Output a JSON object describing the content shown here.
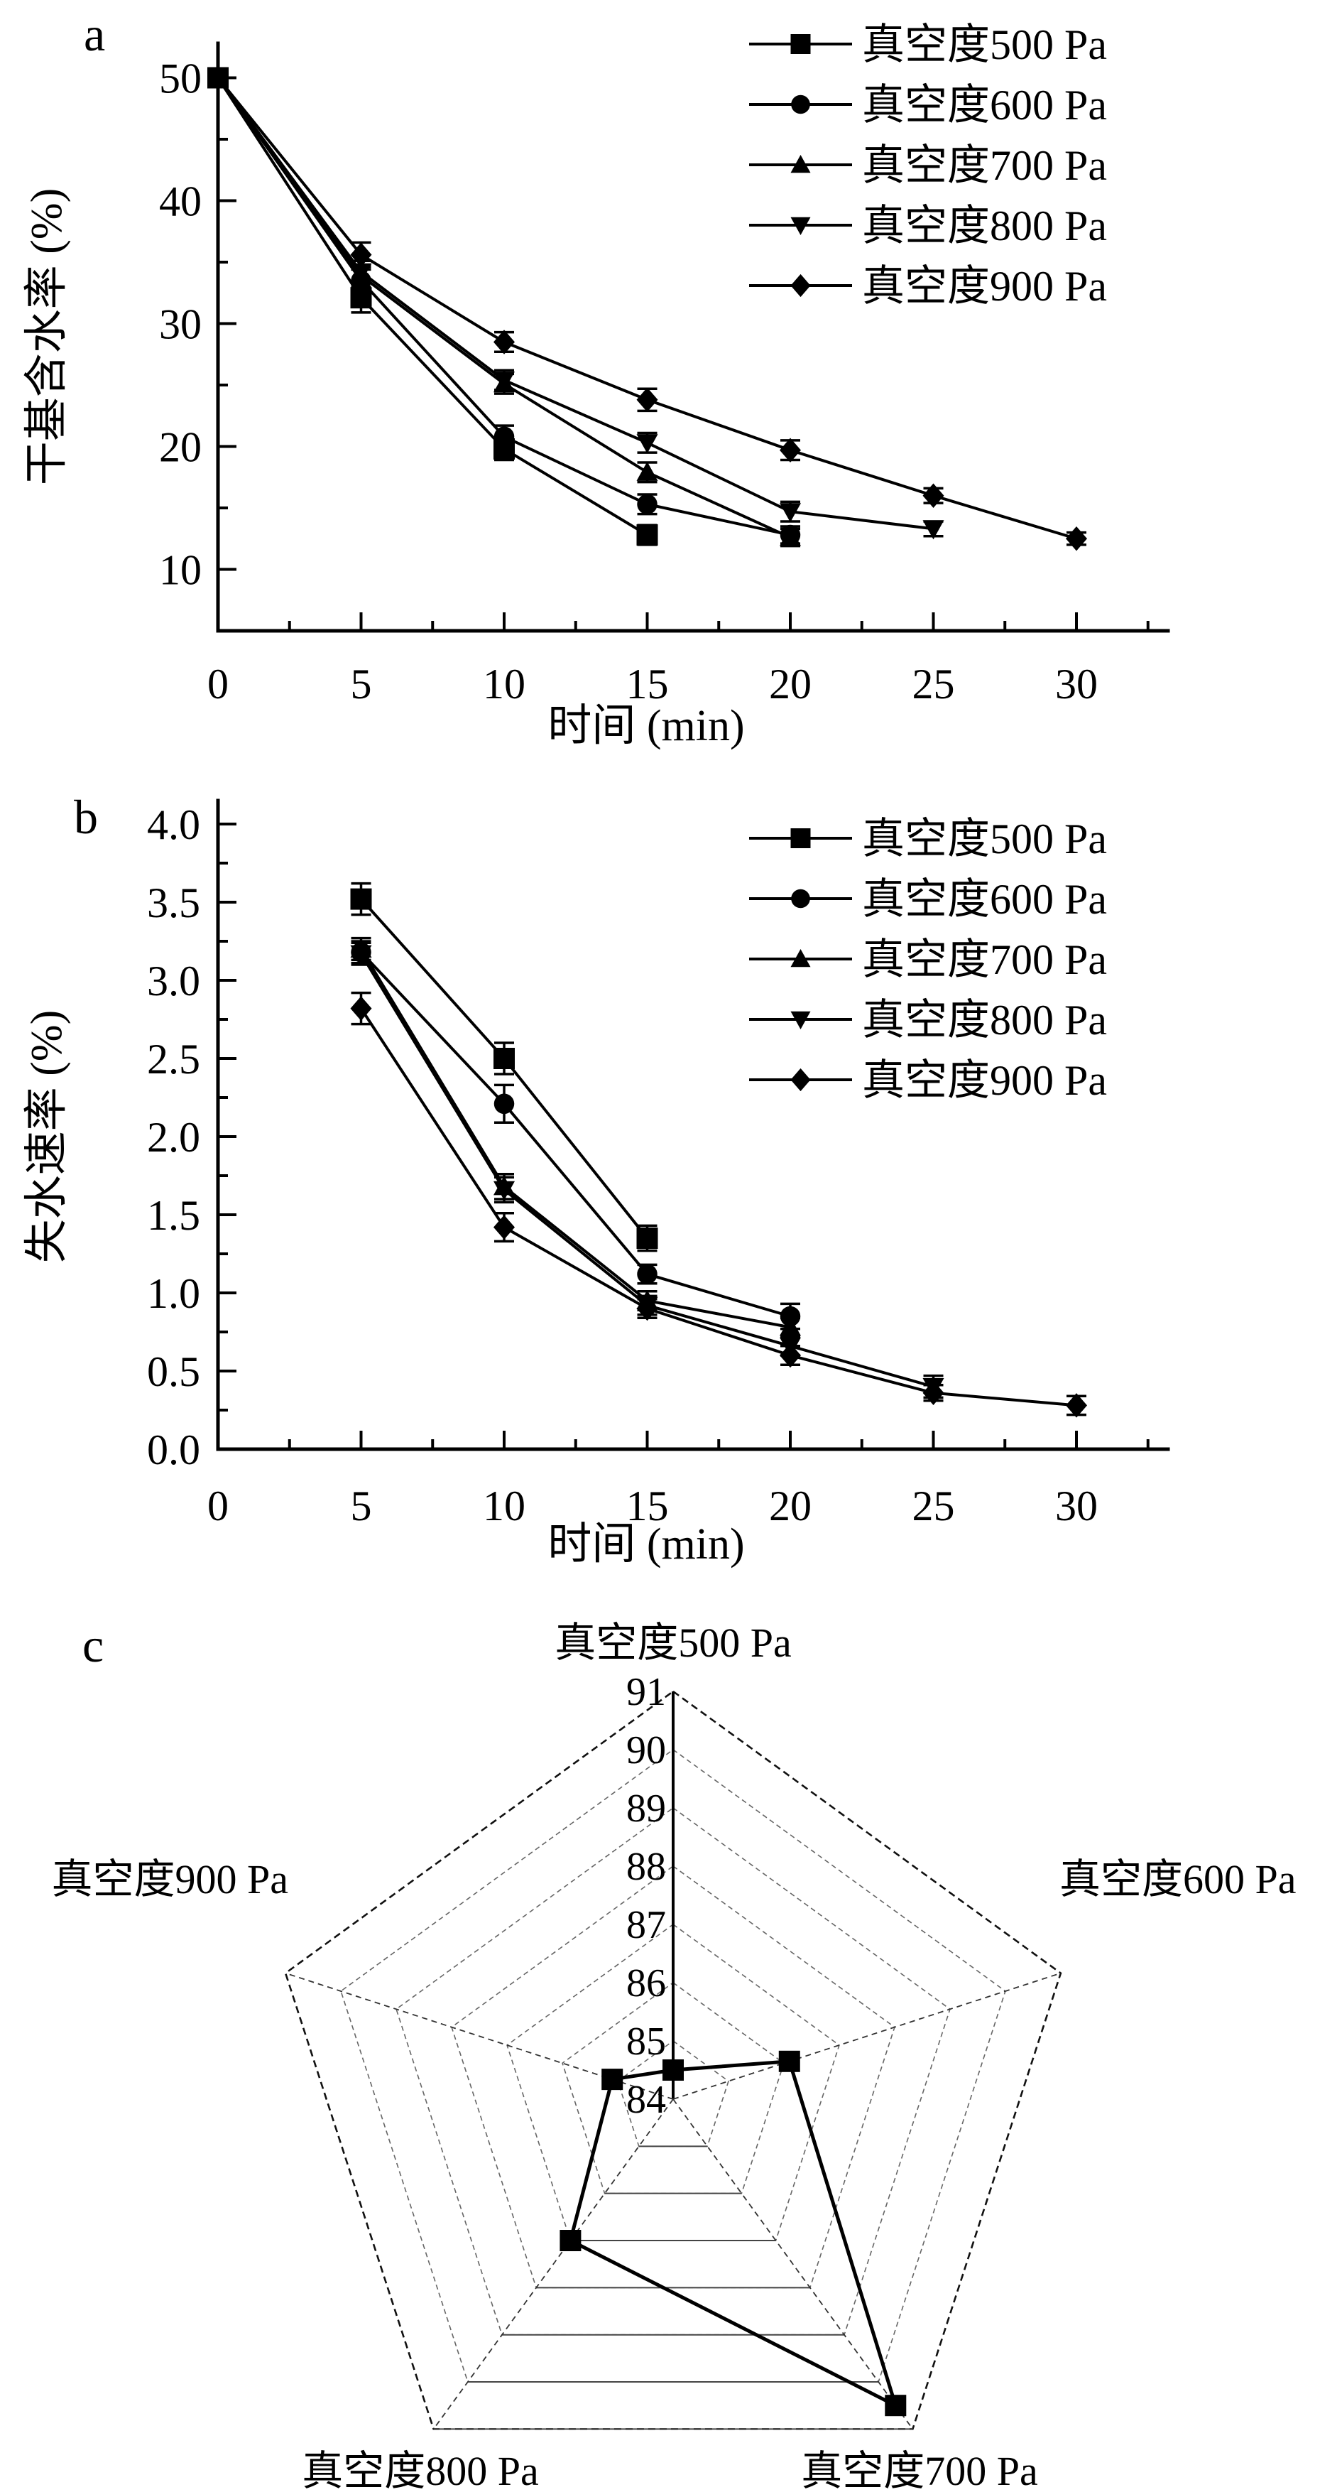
{
  "page": {
    "background": "#ffffff",
    "ink": "#000000"
  },
  "panels": [
    {
      "letter": "a"
    },
    {
      "letter": "b"
    },
    {
      "letter": "c"
    }
  ],
  "legend_labels": [
    "真空度500 Pa",
    "真空度600 Pa",
    "真空度700 Pa",
    "真空度800 Pa",
    "真空度900 Pa"
  ],
  "marker_icons": [
    "square-marker-icon",
    "circle-marker-icon",
    "triangle-up-marker-icon",
    "triangle-down-marker-icon",
    "diamond-marker-icon"
  ],
  "chart_data": [
    {
      "id": "a",
      "type": "line",
      "title": "",
      "xlabel": "时间 (min)",
      "ylabel": "干基含水率 (%)",
      "xlim": [
        0,
        33.2
      ],
      "ylim": [
        5,
        52.8
      ],
      "xticks": [
        0,
        5,
        10,
        15,
        20,
        25,
        30
      ],
      "xtick_labels": [
        "0",
        "5",
        "10",
        "15",
        "20",
        "25",
        "30"
      ],
      "yticks": [
        10,
        20,
        30,
        40,
        50
      ],
      "ytick_labels": [
        "10",
        "20",
        "30",
        "40",
        "50"
      ],
      "xminor_step": 2.5,
      "yminor_step": 5,
      "grid": false,
      "legend_position": "top-right",
      "series": [
        {
          "name": "真空度500 Pa",
          "marker": "square",
          "x": [
            0,
            5,
            10,
            15
          ],
          "y": [
            50,
            32.1,
            19.8,
            12.8
          ],
          "yerr": [
            0.6,
            1.2,
            0.9,
            0.8
          ]
        },
        {
          "name": "真空度600 Pa",
          "marker": "circle",
          "x": [
            0,
            5,
            10,
            15,
            20
          ],
          "y": [
            50,
            33.5,
            20.8,
            15.3,
            12.8
          ],
          "yerr": [
            0.6,
            0.9,
            0.9,
            0.8,
            0.7
          ]
        },
        {
          "name": "真空度700 Pa",
          "marker": "triangle-up",
          "x": [
            0,
            5,
            10,
            15,
            20
          ],
          "y": [
            50,
            33.9,
            25.1,
            17.9,
            12.6
          ],
          "yerr": [
            0.6,
            0.9,
            0.8,
            0.8,
            0.7
          ]
        },
        {
          "name": "真空度800 Pa",
          "marker": "triangle-down",
          "x": [
            0,
            5,
            10,
            15,
            20,
            25
          ],
          "y": [
            50,
            34.2,
            25.4,
            20.3,
            14.7,
            13.3
          ],
          "yerr": [
            0.6,
            0.9,
            0.8,
            0.8,
            0.8,
            0.6
          ]
        },
        {
          "name": "真空度900 Pa",
          "marker": "diamond",
          "x": [
            0,
            5,
            10,
            15,
            20,
            25,
            30
          ],
          "y": [
            50,
            35.6,
            28.5,
            23.8,
            19.7,
            16.0,
            12.5
          ],
          "yerr": [
            0.6,
            1.0,
            0.8,
            0.9,
            0.8,
            0.6,
            0.5
          ]
        }
      ]
    },
    {
      "id": "b",
      "type": "line",
      "title": "",
      "xlabel": "时间 (min)",
      "ylabel": "失水速率 (%)",
      "xlim": [
        0,
        33.2
      ],
      "ylim": [
        0,
        4.15
      ],
      "xticks": [
        0,
        5,
        10,
        15,
        20,
        25,
        30
      ],
      "xtick_labels": [
        "0",
        "5",
        "10",
        "15",
        "20",
        "25",
        "30"
      ],
      "yticks": [
        0,
        0.5,
        1,
        1.5,
        2,
        2.5,
        3,
        3.5,
        4
      ],
      "ytick_labels": [
        "0.0",
        "0.5",
        "1.0",
        "1.5",
        "2.0",
        "2.5",
        "3.0",
        "3.5",
        "4.0"
      ],
      "xminor_step": 2.5,
      "yminor_step": 0.25,
      "grid": false,
      "legend_position": "top-right",
      "series": [
        {
          "name": "真空度500 Pa",
          "marker": "square",
          "x": [
            5,
            10,
            15
          ],
          "y": [
            3.52,
            2.5,
            1.35
          ],
          "yerr": [
            0.1,
            0.1,
            0.08
          ]
        },
        {
          "name": "真空度600 Pa",
          "marker": "circle",
          "x": [
            5,
            10,
            15,
            20
          ],
          "y": [
            3.18,
            2.21,
            1.12,
            0.85
          ],
          "yerr": [
            0.07,
            0.12,
            0.06,
            0.08
          ]
        },
        {
          "name": "真空度700 Pa",
          "marker": "triangle-up",
          "x": [
            5,
            10,
            15,
            20
          ],
          "y": [
            3.2,
            1.68,
            0.95,
            0.78
          ],
          "yerr": [
            0.07,
            0.08,
            0.06,
            0.06
          ]
        },
        {
          "name": "真空度800 Pa",
          "marker": "triangle-down",
          "x": [
            5,
            10,
            15,
            20,
            25
          ],
          "y": [
            3.17,
            1.66,
            0.92,
            0.66,
            0.4
          ],
          "yerr": [
            0.07,
            0.08,
            0.06,
            0.06,
            0.07
          ]
        },
        {
          "name": "真空度900 Pa",
          "marker": "diamond",
          "x": [
            5,
            10,
            15,
            20,
            25,
            30
          ],
          "y": [
            2.82,
            1.42,
            0.9,
            0.6,
            0.36,
            0.28
          ],
          "yerr": [
            0.1,
            0.09,
            0.06,
            0.06,
            0.05,
            0.06
          ]
        }
      ]
    },
    {
      "id": "c",
      "type": "radar",
      "title": "",
      "rmin": 84,
      "rmax": 91,
      "rtick_labels": [
        "84",
        "85",
        "86",
        "87",
        "88",
        "89",
        "90",
        "91"
      ],
      "marker": "square",
      "axes": [
        {
          "label": "真空度500 Pa",
          "value": 84.5
        },
        {
          "label": "真空度600 Pa",
          "value": 86.1
        },
        {
          "label": "真空度700 Pa",
          "value": 90.5
        },
        {
          "label": "真空度800 Pa",
          "value": 87.0
        },
        {
          "label": "真空度900 Pa",
          "value": 85.1
        }
      ]
    }
  ]
}
